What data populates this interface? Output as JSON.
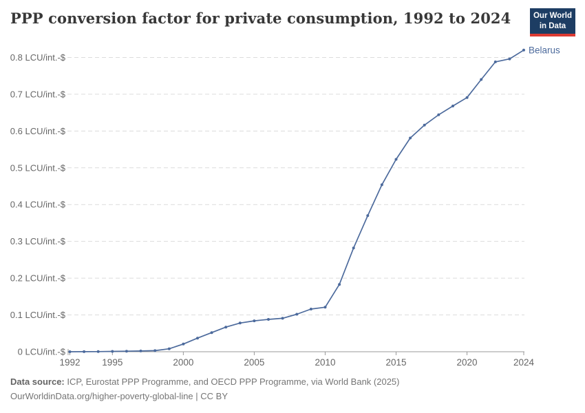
{
  "header": {
    "title": "PPP conversion factor for private consumption, 1992 to 2024",
    "logo": {
      "line1": "Our World",
      "line2": "in Data"
    }
  },
  "footer": {
    "source_label": "Data source:",
    "source_text": " ICP, Eurostat PPP Programme, and OECD PPP Programme, via World Bank (2025)",
    "link_line": "OurWorldinData.org/higher-poverty-global-line | CC BY"
  },
  "colors": {
    "line": "#4C6A9C",
    "grid": "#dcdcdc",
    "axis": "#999999",
    "tick_text": "#666666",
    "title_text": "#383838",
    "footer_text": "#757575",
    "logo_bg": "#1d3d63",
    "logo_red": "#dc3a32"
  },
  "chart_data": {
    "type": "line",
    "title": "PPP conversion factor for private consumption, 1992 to 2024",
    "xlabel": "",
    "ylabel": "LCU/int.-$",
    "unit": "LCU/int.-$",
    "grid": "horizontal-dashed",
    "legend": "end-of-line-label",
    "xlim": [
      1992,
      2024
    ],
    "ylim": [
      0,
      0.8
    ],
    "xticks": [
      1992,
      1995,
      2000,
      2005,
      2010,
      2015,
      2020,
      2024
    ],
    "yticks": [
      {
        "v": 0.0,
        "label": "0 LCU/int.-$"
      },
      {
        "v": 0.1,
        "label": "0.1 LCU/int.-$"
      },
      {
        "v": 0.2,
        "label": "0.2 LCU/int.-$"
      },
      {
        "v": 0.3,
        "label": "0.3 LCU/int.-$"
      },
      {
        "v": 0.4,
        "label": "0.4 LCU/int.-$"
      },
      {
        "v": 0.5,
        "label": "0.5 LCU/int.-$"
      },
      {
        "v": 0.6,
        "label": "0.6 LCU/int.-$"
      },
      {
        "v": 0.7,
        "label": "0.7 LCU/int.-$"
      },
      {
        "v": 0.8,
        "label": "0.8 LCU/int.-$"
      }
    ],
    "series": [
      {
        "name": "Belarus",
        "color": "#4C6A9C",
        "x": [
          1992,
          1993,
          1994,
          1995,
          1996,
          1997,
          1998,
          1999,
          2000,
          2001,
          2002,
          2003,
          2004,
          2005,
          2006,
          2007,
          2008,
          2009,
          2010,
          2011,
          2012,
          2013,
          2014,
          2015,
          2016,
          2017,
          2018,
          2019,
          2020,
          2021,
          2022,
          2023,
          2024
        ],
        "values": [
          2e-05,
          0.0001,
          0.0004,
          0.001,
          0.0015,
          0.002,
          0.003,
          0.008,
          0.021,
          0.037,
          0.052,
          0.067,
          0.078,
          0.084,
          0.088,
          0.091,
          0.102,
          0.116,
          0.121,
          0.183,
          0.282,
          0.37,
          0.454,
          0.523,
          0.581,
          0.616,
          0.644,
          0.668,
          0.691,
          0.74,
          0.788,
          0.796,
          0.82
        ]
      }
    ]
  }
}
